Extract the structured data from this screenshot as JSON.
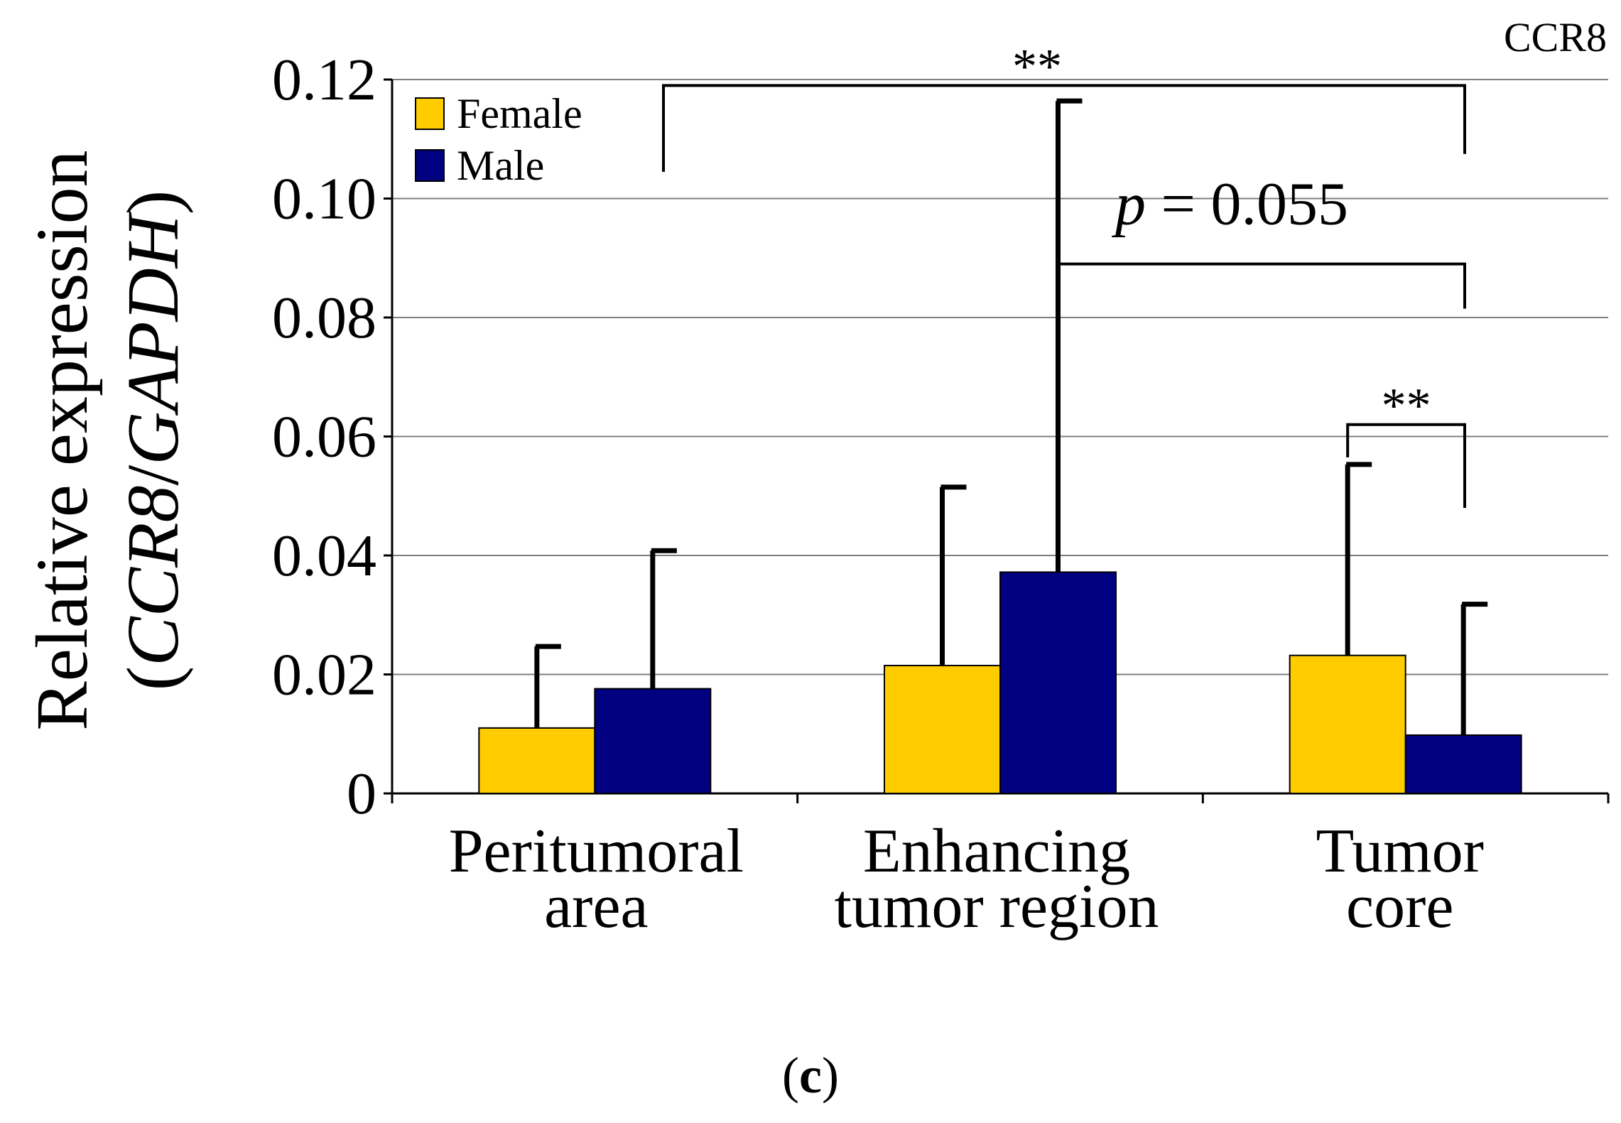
{
  "panel_label": {
    "open": "(",
    "letter": "c",
    "close": ")"
  },
  "chart_data": {
    "type": "bar",
    "title": "CCR8",
    "categories": [
      [
        "Peritumoral",
        "area"
      ],
      [
        "Enhancing",
        "tumor region"
      ],
      [
        "Tumor",
        "core"
      ]
    ],
    "series": [
      {
        "name": "Female",
        "color": "#FFCC00",
        "values": [
          0.011,
          0.0215,
          0.0232
        ],
        "error": [
          0.0137,
          0.03,
          0.0321
        ]
      },
      {
        "name": "Male",
        "color": "#000080",
        "values": [
          0.0176,
          0.0372,
          0.0098
        ],
        "error": [
          0.0232,
          0.0792,
          0.022
        ]
      }
    ],
    "ylabel": {
      "line1": "Relative expression",
      "open": "(",
      "gene": "CCR8",
      "slash": "/",
      "ref": "GAPDH",
      "close": ")"
    },
    "ylim": [
      0,
      0.12
    ],
    "yticks": [
      "0",
      "0.02",
      "0.04",
      "0.06",
      "0.08",
      "0.10",
      "0.12"
    ],
    "legend_position": "top-left",
    "grid": true,
    "annotations": [
      {
        "label": "**",
        "from_category": 0,
        "to_category": 2,
        "level": 0.119
      },
      {
        "label_p": "p",
        "label_rest": " = 0.055",
        "from_category": 1,
        "to_category": 2,
        "level": 0.089
      },
      {
        "label": "**",
        "from_category": 2,
        "to_category": 2,
        "level": 0.062
      }
    ]
  }
}
